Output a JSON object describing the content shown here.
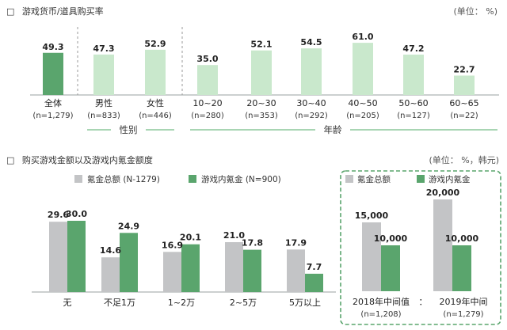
{
  "colors": {
    "dark_green": "#5aa56d",
    "light_green": "#c9e8cc",
    "gray": "#c3c4c6",
    "line_green": "#8cc79a",
    "box_border": "#5aa56d"
  },
  "header1": {
    "marker": "□",
    "title": "游戏货币/道具购买率",
    "unit": "(单位： %)"
  },
  "header2": {
    "marker": "□",
    "title": "购买游戏金额以及游戏内氪金额度",
    "unit": "(单位： %，韩元)"
  },
  "chart_data": [
    {
      "type": "bar",
      "title": "游戏货币/道具购买率",
      "categories": [
        "全体",
        "男性",
        "女性",
        "10~20",
        "20~30",
        "30~40",
        "40~50",
        "50~60",
        "60~65"
      ],
      "sample_sizes": [
        "(n=1,279)",
        "(n=833)",
        "(n=446)",
        "(n=280)",
        "(n=353)",
        "(n=292)",
        "(n=205)",
        "(n=127)",
        "(n=22)"
      ],
      "values": [
        49.3,
        47.3,
        52.9,
        35.0,
        52.1,
        54.5,
        61.0,
        47.2,
        22.7
      ],
      "value_labels": [
        "49.3",
        "47.3",
        "52.9",
        "35.0",
        "52.1",
        "54.5",
        "61.0",
        "47.2",
        "22.7"
      ],
      "groups": [
        {
          "label": "性别",
          "categories": [
            "男性",
            "女性"
          ]
        },
        {
          "label": "年龄",
          "categories": [
            "10~20",
            "20~30",
            "30~40",
            "40~50",
            "50~60",
            "60~65"
          ]
        }
      ],
      "ylim": [
        0,
        70
      ]
    },
    {
      "type": "bar",
      "title": "购买游戏金额以及游戏内氪金额度",
      "categories": [
        "无",
        "不足1万",
        "1~2万",
        "2~5万",
        "5万以上"
      ],
      "series": [
        {
          "name": "氪金总额 (N-1279)",
          "values": [
            29.6,
            14.6,
            16.9,
            21.0,
            17.9
          ],
          "value_labels": [
            "29.6",
            "14.6",
            "16.9",
            "21.0",
            "17.9"
          ]
        },
        {
          "name": "游戏内氪金 (N=900)",
          "values": [
            30.0,
            24.9,
            20.1,
            17.8,
            7.7
          ],
          "value_labels": [
            "30.0",
            "24.9",
            "20.1",
            "17.8",
            "7.7"
          ]
        }
      ],
      "ylim": [
        0,
        35
      ]
    },
    {
      "type": "bar",
      "categories": [
        "2018年中间值",
        "2019年中间"
      ],
      "sample_sizes": [
        "(n=1,208)",
        "(n=1,279)"
      ],
      "separator": "：",
      "series": [
        {
          "name": "氪金总额",
          "values": [
            15000,
            20000
          ],
          "value_labels": [
            "15,000",
            "20,000"
          ]
        },
        {
          "name": "游戏内氪金",
          "values": [
            10000,
            10000
          ],
          "value_labels": [
            "10,000",
            "10,000"
          ]
        }
      ],
      "ylim": [
        0,
        22000
      ]
    }
  ]
}
